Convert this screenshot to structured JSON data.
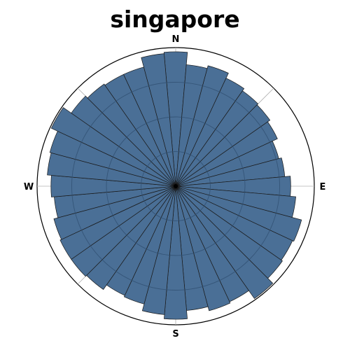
{
  "title": "singapore",
  "colors": {
    "bar_fill": "#4a6f96",
    "bar_edge": "#1a1a1a",
    "grid": "#2f4f70",
    "frame": "#000000"
  },
  "chart_data": {
    "type": "polar-bar",
    "title": "singapore",
    "direction_labels": [
      "N",
      "E",
      "S",
      "W"
    ],
    "sector_count": 36,
    "sector_width_deg": 10,
    "rmax": 100,
    "grid_rings": [
      25,
      50,
      75,
      100
    ],
    "grid": true,
    "legend": false,
    "values": [
      97,
      88,
      90,
      86,
      84,
      83,
      81,
      77,
      79,
      83,
      87,
      94,
      93,
      94,
      99,
      92,
      93,
      90,
      96,
      93,
      88,
      87,
      91,
      92,
      92,
      91,
      88,
      90,
      93,
      94,
      99,
      92,
      90,
      89,
      89,
      96
    ]
  }
}
